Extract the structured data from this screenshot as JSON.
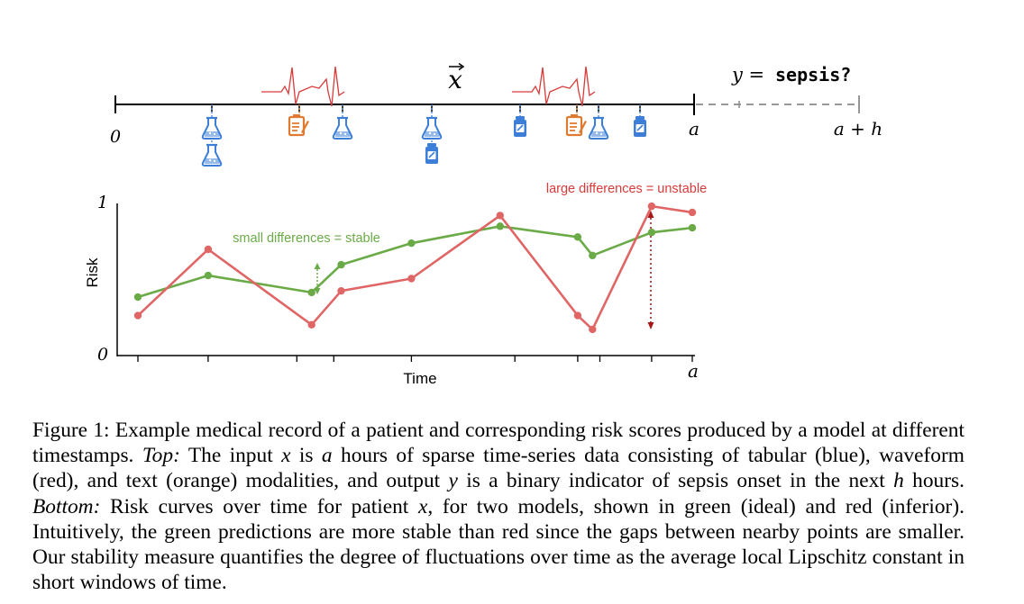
{
  "timeline": {
    "start_label": "0",
    "end_label": "a",
    "horizon_label": "a + h",
    "input_label": "x",
    "output_label_var": "y =",
    "output_label_value": "sepsis?"
  },
  "modalities": {
    "tabular_color": "#3d7fd8",
    "waveform_color": "#d93a3a",
    "text_color": "#e07a30",
    "icons": [
      "lab-flask-icon",
      "clinical-note-icon",
      "medicine-bottle-icon",
      "ecg-waveform-icon"
    ]
  },
  "chart_data": {
    "type": "line",
    "xlabel": "Time",
    "ylabel": "Risk",
    "ylim": [
      0,
      1
    ],
    "ytick_labels": [
      "0",
      "1"
    ],
    "x_end_label": "a",
    "annotations": {
      "stable": "small differences = stable",
      "unstable": "large differences = unstable"
    },
    "series": [
      {
        "color": "#6aab48",
        "x": [
          0,
          0.19,
          0.47,
          0.55,
          0.74,
          0.98,
          1.19,
          1.23,
          1.39,
          1.5
        ],
        "values": [
          0.38,
          0.52,
          0.41,
          0.59,
          0.73,
          0.84,
          0.77,
          0.65,
          0.8,
          0.83
        ]
      },
      {
        "color": "#e06666",
        "x": [
          0,
          0.19,
          0.47,
          0.55,
          0.74,
          0.98,
          1.19,
          1.23,
          1.39,
          1.5
        ],
        "values": [
          0.26,
          0.69,
          0.2,
          0.42,
          0.5,
          0.91,
          0.26,
          0.17,
          0.97,
          0.93
        ]
      }
    ]
  },
  "caption": {
    "part1": "Figure 1: Example medical record of a patient and corresponding risk scores produced by a model at different timestamps.",
    "top_label": "Top:",
    "part2": "The input",
    "var_x": "x",
    "part3": "is",
    "var_a": "a",
    "part4": "hours of sparse time-series data consisting of tabular (blue), waveform (red), and text (orange) modalities, and output",
    "var_y": "y",
    "part5": "is a binary indicator of sepsis onset in the next",
    "var_h": "h",
    "part6": "hours.",
    "bottom_label": "Bottom:",
    "part7": "Risk curves over time for patient",
    "var_x2": "x",
    "part8": ", for two models, shown in green (ideal) and red (inferior). Intuitively, the green predictions are more stable than red since the gaps between nearby points are smaller. Our stability measure quantifies the degree of fluctuations over time as the average local Lipschitz constant in short windows of time."
  }
}
